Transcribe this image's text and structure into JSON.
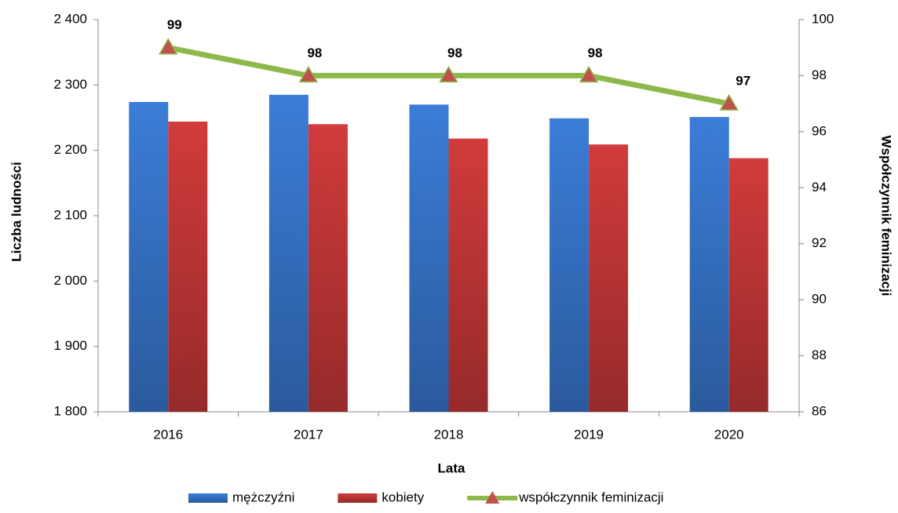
{
  "chart_data": {
    "type": "bar_line",
    "x_label": "Lata",
    "y_label": "Liczba ludności",
    "y2_label": "Współczynnik feminizacji",
    "categories": [
      "2016",
      "2017",
      "2018",
      "2019",
      "2020"
    ],
    "series": [
      {
        "name": "mężczyźni",
        "color": "#3b7dd8",
        "type": "bar",
        "values": [
          2274,
          2285,
          2270,
          2249,
          2251
        ]
      },
      {
        "name": "kobiety",
        "color": "#d13b3b",
        "type": "bar",
        "values": [
          2244,
          2240,
          2218,
          2209,
          2188
        ]
      },
      {
        "name": "współczynnik feminizacji",
        "color": "#8db84a",
        "marker_color": "#c0504d",
        "type": "line",
        "axis": "y2",
        "values": [
          99,
          98,
          98,
          98,
          97
        ]
      }
    ],
    "ylim": [
      1800,
      2400
    ],
    "yticks": [
      {
        "value": 1800,
        "label": "1 800"
      },
      {
        "value": 1900,
        "label": "1 900"
      },
      {
        "value": 2000,
        "label": "2 000"
      },
      {
        "value": 2100,
        "label": "2 100"
      },
      {
        "value": 2200,
        "label": "2 200"
      },
      {
        "value": 2300,
        "label": "2 300"
      },
      {
        "value": 2400,
        "label": "2 400"
      }
    ],
    "y2lim": [
      86,
      100
    ],
    "y2ticks": [
      86,
      88,
      90,
      92,
      94,
      96,
      98,
      100
    ],
    "grid": false,
    "legend": "bottom"
  }
}
